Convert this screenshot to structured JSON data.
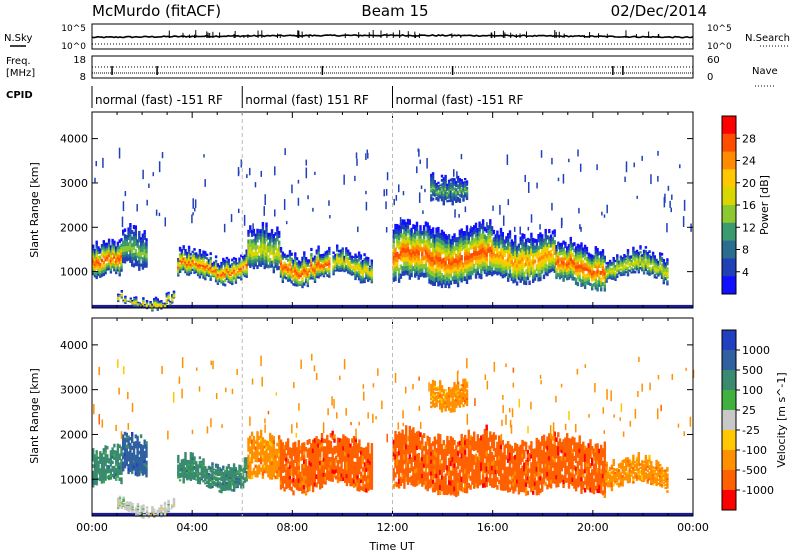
{
  "header": {
    "station": "McMurdo (fitACF)",
    "beam": "Beam 15",
    "date": "02/Dec/2014"
  },
  "status_panels": {
    "nsky_label": "N.Sky",
    "nsky_top": "10^5",
    "nsky_bottom": "10^0",
    "nsearch_label": "N.Search",
    "nsearch_top": "10^5",
    "nsearch_bottom": "10^0",
    "freq_label": "Freq.",
    "freq_unit": "[MHz]",
    "freq_top": "18",
    "freq_bottom": "8",
    "nave_label": "Nave",
    "nave_top": "60",
    "nave_bottom": "0",
    "cpid_label": "CPID",
    "cpid_segments": [
      {
        "label": "normal (fast) -151 RF",
        "start_h": 0,
        "end_h": 6
      },
      {
        "label": "normal (fast) 151 RF",
        "start_h": 6,
        "end_h": 12
      },
      {
        "label": "normal (fast) -151 RF",
        "start_h": 12,
        "end_h": 24
      }
    ]
  },
  "chart_data": [
    {
      "type": "heatmap",
      "title": "",
      "xlabel": "Time UT",
      "ylabel": "Slant Range [km]",
      "xlim": [
        0,
        24
      ],
      "ylim": [
        180,
        4600
      ],
      "yticks": [
        1000,
        2000,
        3000,
        4000
      ],
      "colorbar": {
        "label": "Power [dB]",
        "ticks": [
          "28",
          "24",
          "20",
          "16",
          "12",
          "8",
          "4"
        ],
        "colors": [
          "#ff0000",
          "#ff4d00",
          "#ff8c00",
          "#ffc800",
          "#d8d800",
          "#8cc830",
          "#3c9a70",
          "#2a6d8f",
          "#2040b8",
          "#1010ff"
        ],
        "range": [
          0,
          30
        ]
      },
      "echo_bands": [
        {
          "x": [
            0.0,
            1.2
          ],
          "y": [
            800,
            1700
          ],
          "peak": 27
        },
        {
          "x": [
            1.2,
            2.2
          ],
          "y": [
            1100,
            2100
          ],
          "peak": 14
        },
        {
          "x": [
            1.0,
            3.3
          ],
          "y": [
            220,
            550
          ],
          "peak": 22
        },
        {
          "x": [
            3.4,
            6.2
          ],
          "y": [
            800,
            1500
          ],
          "peak": 26
        },
        {
          "x": [
            6.2,
            7.5
          ],
          "y": [
            900,
            2000
          ],
          "peak": 18
        },
        {
          "x": [
            7.5,
            9.5
          ],
          "y": [
            750,
            1600
          ],
          "peak": 27
        },
        {
          "x": [
            9.6,
            11.2
          ],
          "y": [
            800,
            1500
          ],
          "peak": 20
        },
        {
          "x": [
            12.0,
            16.0
          ],
          "y": [
            700,
            2100
          ],
          "peak": 27
        },
        {
          "x": [
            16.0,
            18.5
          ],
          "y": [
            800,
            2000
          ],
          "peak": 24
        },
        {
          "x": [
            18.5,
            20.5
          ],
          "y": [
            650,
            1700
          ],
          "peak": 28
        },
        {
          "x": [
            20.5,
            23.0
          ],
          "y": [
            800,
            1500
          ],
          "peak": 18
        },
        {
          "x": [
            13.5,
            15.0
          ],
          "y": [
            2600,
            3300
          ],
          "peak": 12
        }
      ]
    },
    {
      "type": "heatmap",
      "title": "",
      "xlabel": "Time UT",
      "ylabel": "Slant Range [km]",
      "xlim": [
        0,
        24
      ],
      "ylim": [
        180,
        4600
      ],
      "yticks": [
        1000,
        2000,
        3000,
        4000
      ],
      "xticks": [
        "00:00",
        "04:00",
        "08:00",
        "12:00",
        "16:00",
        "20:00",
        "00:00"
      ],
      "colorbar": {
        "label": "Velocity [m s^-1]",
        "ticks": [
          "1000",
          "500",
          "100",
          "25",
          "-25",
          "-100",
          "-500",
          "-1000"
        ],
        "colors": [
          "#2040c0",
          "#3060a0",
          "#3a8a70",
          "#40b040",
          "#c8c8c8",
          "#ffc800",
          "#ff9000",
          "#ff6000",
          "#ff0000"
        ],
        "range": [
          -1200,
          1200
        ]
      },
      "echo_bands": [
        {
          "x": [
            0.0,
            1.2
          ],
          "y": [
            800,
            1700
          ],
          "velocity": 300
        },
        {
          "x": [
            1.2,
            2.2
          ],
          "y": [
            1100,
            2100
          ],
          "velocity": 400
        },
        {
          "x": [
            1.0,
            3.3
          ],
          "y": [
            220,
            550
          ],
          "velocity": 0
        },
        {
          "x": [
            3.4,
            6.2
          ],
          "y": [
            800,
            1500
          ],
          "velocity": 250
        },
        {
          "x": [
            6.2,
            7.5
          ],
          "y": [
            900,
            2000
          ],
          "velocity": -200
        },
        {
          "x": [
            7.5,
            11.2
          ],
          "y": [
            750,
            2000
          ],
          "velocity": -300
        },
        {
          "x": [
            12.0,
            16.0
          ],
          "y": [
            700,
            2100
          ],
          "velocity": -350
        },
        {
          "x": [
            16.0,
            20.5
          ],
          "y": [
            700,
            2000
          ],
          "velocity": -550
        },
        {
          "x": [
            20.5,
            23.0
          ],
          "y": [
            800,
            1500
          ],
          "velocity": -200
        },
        {
          "x": [
            13.5,
            15.0
          ],
          "y": [
            2600,
            3300
          ],
          "velocity": -100
        }
      ]
    }
  ]
}
